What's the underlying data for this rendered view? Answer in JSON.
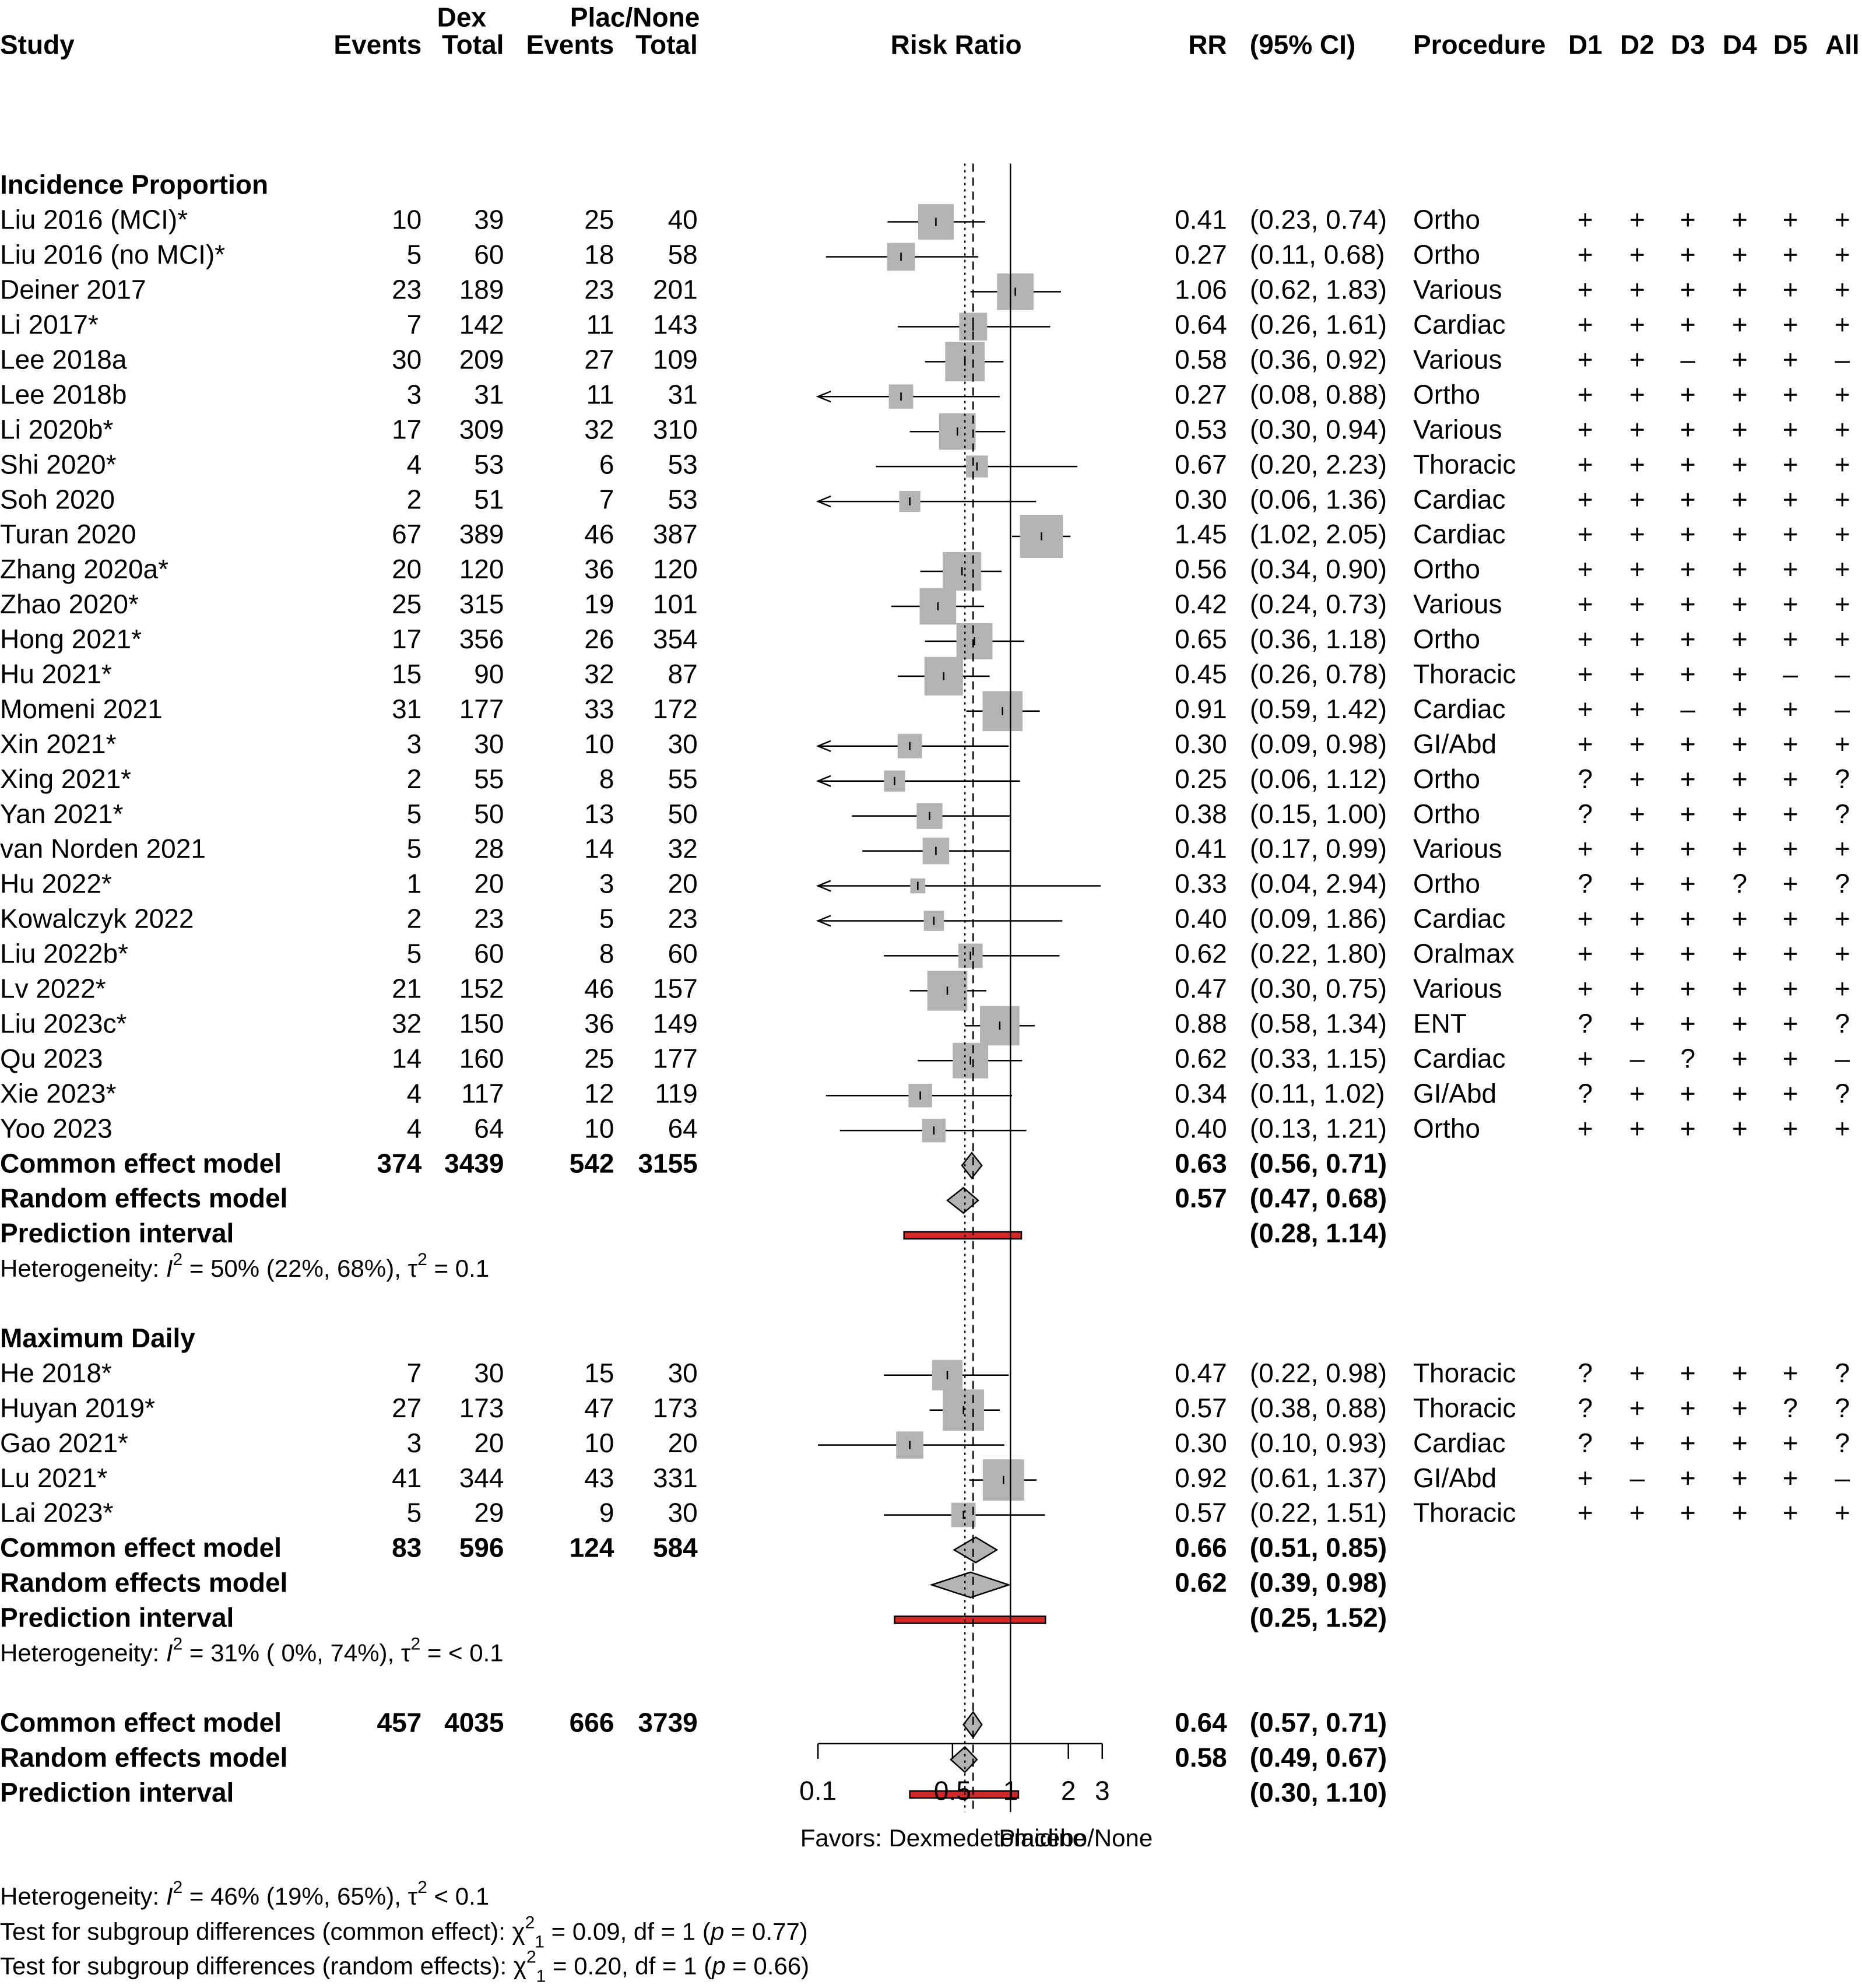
{
  "headers": {
    "group1": "Dex",
    "group2": "Plac/None",
    "study": "Study",
    "events": "Events",
    "total": "Total",
    "effect": "Risk Ratio",
    "rr": "RR",
    "ci": "(95% CI)",
    "procedure": "Procedure",
    "domains": [
      "D1",
      "D2",
      "D3",
      "D4",
      "D5",
      "All"
    ]
  },
  "chart_data": {
    "type": "forest",
    "measure": "Risk Ratio",
    "x_scale": "log",
    "xlim": [
      0.1,
      3
    ],
    "x_ticks": [
      {
        "value": 0.1,
        "label": "0.1"
      },
      {
        "value": 0.5,
        "label": "0.5"
      },
      {
        "value": 1,
        "label": "1"
      },
      {
        "value": 2,
        "label": "2"
      },
      {
        "value": 3,
        "label": "3"
      }
    ],
    "reference_line": 1,
    "common_line": 0.64,
    "random_line": 0.58,
    "xlabel_left": "Favors: Dexmedetomidine",
    "xlabel_right": "Placebo/None",
    "subgroups": [
      {
        "name": "Incidence Proportion",
        "studies": [
          {
            "study": "Liu 2016 (MCI)*",
            "e1": 10,
            "n1": 39,
            "e2": 25,
            "n2": 40,
            "rr": 0.41,
            "lo": 0.23,
            "hi": 0.74,
            "rr_text": "0.41",
            "ci_text": "(0.23, 0.74)",
            "procedure": "Ortho",
            "rob": [
              "+",
              "+",
              "+",
              "+",
              "+",
              "+"
            ],
            "w": 3.4
          },
          {
            "study": "Liu 2016 (no MCI)*",
            "e1": 5,
            "n1": 60,
            "e2": 18,
            "n2": 58,
            "rr": 0.27,
            "lo": 0.11,
            "hi": 0.68,
            "rr_text": "0.27",
            "ci_text": "(0.11, 0.68)",
            "procedure": "Ortho",
            "rob": [
              "+",
              "+",
              "+",
              "+",
              "+",
              "+"
            ],
            "w": 2.1
          },
          {
            "study": "Deiner 2017",
            "e1": 23,
            "n1": 189,
            "e2": 23,
            "n2": 201,
            "rr": 1.06,
            "lo": 0.62,
            "hi": 1.83,
            "rr_text": "1.06",
            "ci_text": "(0.62, 1.83)",
            "procedure": "Various",
            "rob": [
              "+",
              "+",
              "+",
              "+",
              "+",
              "+"
            ],
            "w": 3.6
          },
          {
            "study": "Li 2017*",
            "e1": 7,
            "n1": 142,
            "e2": 11,
            "n2": 143,
            "rr": 0.64,
            "lo": 0.26,
            "hi": 1.61,
            "rr_text": "0.64",
            "ci_text": "(0.26, 1.61)",
            "procedure": "Cardiac",
            "rob": [
              "+",
              "+",
              "+",
              "+",
              "+",
              "+"
            ],
            "w": 2.1
          },
          {
            "study": "Lee 2018a",
            "e1": 30,
            "n1": 209,
            "e2": 27,
            "n2": 109,
            "rr": 0.58,
            "lo": 0.36,
            "hi": 0.92,
            "rr_text": "0.58",
            "ci_text": "(0.36, 0.92)",
            "procedure": "Various",
            "rob": [
              "+",
              "+",
              "–",
              "+",
              "+",
              "–"
            ],
            "w": 4.2
          },
          {
            "study": "Lee 2018b",
            "e1": 3,
            "n1": 31,
            "e2": 11,
            "n2": 31,
            "rr": 0.27,
            "lo": 0.08,
            "hi": 0.88,
            "rr_text": "0.27",
            "ci_text": "(0.08, 0.88)",
            "procedure": "Ortho",
            "rob": [
              "+",
              "+",
              "+",
              "+",
              "+",
              "+"
            ],
            "w": 1.6
          },
          {
            "study": "Li 2020b*",
            "e1": 17,
            "n1": 309,
            "e2": 32,
            "n2": 310,
            "rr": 0.53,
            "lo": 0.3,
            "hi": 0.94,
            "rr_text": "0.53",
            "ci_text": "(0.30, 0.94)",
            "procedure": "Various",
            "rob": [
              "+",
              "+",
              "+",
              "+",
              "+",
              "+"
            ],
            "w": 3.6
          },
          {
            "study": "Shi 2020*",
            "e1": 4,
            "n1": 53,
            "e2": 6,
            "n2": 53,
            "rr": 0.67,
            "lo": 0.2,
            "hi": 2.23,
            "rr_text": "0.67",
            "ci_text": "(0.20, 2.23)",
            "procedure": "Thoracic",
            "rob": [
              "+",
              "+",
              "+",
              "+",
              "+",
              "+"
            ],
            "w": 1.3
          },
          {
            "study": "Soh 2020",
            "e1": 2,
            "n1": 51,
            "e2": 7,
            "n2": 53,
            "rr": 0.3,
            "lo": 0.06,
            "hi": 1.36,
            "rr_text": "0.30",
            "ci_text": "(0.06, 1.36)",
            "procedure": "Cardiac",
            "rob": [
              "+",
              "+",
              "+",
              "+",
              "+",
              "+"
            ],
            "w": 1.2
          },
          {
            "study": "Turan 2020",
            "e1": 67,
            "n1": 389,
            "e2": 46,
            "n2": 387,
            "rr": 1.45,
            "lo": 1.02,
            "hi": 2.05,
            "rr_text": "1.45",
            "ci_text": "(1.02, 2.05)",
            "procedure": "Cardiac",
            "rob": [
              "+",
              "+",
              "+",
              "+",
              "+",
              "+"
            ],
            "w": 5.0
          },
          {
            "study": "Zhang 2020a*",
            "e1": 20,
            "n1": 120,
            "e2": 36,
            "n2": 120,
            "rr": 0.56,
            "lo": 0.34,
            "hi": 0.9,
            "rr_text": "0.56",
            "ci_text": "(0.34, 0.90)",
            "procedure": "Ortho",
            "rob": [
              "+",
              "+",
              "+",
              "+",
              "+",
              "+"
            ],
            "w": 4.0
          },
          {
            "study": "Zhao 2020*",
            "e1": 25,
            "n1": 315,
            "e2": 19,
            "n2": 101,
            "rr": 0.42,
            "lo": 0.24,
            "hi": 0.73,
            "rr_text": "0.42",
            "ci_text": "(0.24, 0.73)",
            "procedure": "Various",
            "rob": [
              "+",
              "+",
              "+",
              "+",
              "+",
              "+"
            ],
            "w": 3.6
          },
          {
            "study": "Hong 2021*",
            "e1": 17,
            "n1": 356,
            "e2": 26,
            "n2": 354,
            "rr": 0.65,
            "lo": 0.36,
            "hi": 1.18,
            "rr_text": "0.65",
            "ci_text": "(0.36, 1.18)",
            "procedure": "Ortho",
            "rob": [
              "+",
              "+",
              "+",
              "+",
              "+",
              "+"
            ],
            "w": 3.5
          },
          {
            "study": "Hu 2021*",
            "e1": 15,
            "n1": 90,
            "e2": 32,
            "n2": 87,
            "rr": 0.45,
            "lo": 0.26,
            "hi": 0.78,
            "rr_text": "0.45",
            "ci_text": "(0.26, 0.78)",
            "procedure": "Thoracic",
            "rob": [
              "+",
              "+",
              "+",
              "+",
              "–",
              "–"
            ],
            "w": 4.0
          },
          {
            "study": "Momeni 2021",
            "e1": 31,
            "n1": 177,
            "e2": 33,
            "n2": 172,
            "rr": 0.91,
            "lo": 0.59,
            "hi": 1.42,
            "rr_text": "0.91",
            "ci_text": "(0.59, 1.42)",
            "procedure": "Cardiac",
            "rob": [
              "+",
              "+",
              "–",
              "+",
              "+",
              "–"
            ],
            "w": 4.3
          },
          {
            "study": "Xin 2021*",
            "e1": 3,
            "n1": 30,
            "e2": 10,
            "n2": 30,
            "rr": 0.3,
            "lo": 0.09,
            "hi": 0.98,
            "rr_text": "0.30",
            "ci_text": "(0.09, 0.98)",
            "procedure": "GI/Abd",
            "rob": [
              "+",
              "+",
              "+",
              "+",
              "+",
              "+"
            ],
            "w": 1.6
          },
          {
            "study": "Xing 2021*",
            "e1": 2,
            "n1": 55,
            "e2": 8,
            "n2": 55,
            "rr": 0.25,
            "lo": 0.06,
            "hi": 1.12,
            "rr_text": "0.25",
            "ci_text": "(0.06, 1.12)",
            "procedure": "Ortho",
            "rob": [
              "?",
              "+",
              "+",
              "+",
              "+",
              "?"
            ],
            "w": 1.2
          },
          {
            "study": "Yan 2021*",
            "e1": 5,
            "n1": 50,
            "e2": 13,
            "n2": 50,
            "rr": 0.38,
            "lo": 0.15,
            "hi": 1.0,
            "rr_text": "0.38",
            "ci_text": "(0.15, 1.00)",
            "procedure": "Ortho",
            "rob": [
              "?",
              "+",
              "+",
              "+",
              "+",
              "?"
            ],
            "w": 1.8
          },
          {
            "study": "van Norden 2021",
            "e1": 5,
            "n1": 28,
            "e2": 14,
            "n2": 32,
            "rr": 0.41,
            "lo": 0.17,
            "hi": 0.99,
            "rr_text": "0.41",
            "ci_text": "(0.17, 0.99)",
            "procedure": "Various",
            "rob": [
              "+",
              "+",
              "+",
              "+",
              "+",
              "+"
            ],
            "w": 1.9
          },
          {
            "study": "Hu 2022*",
            "e1": 1,
            "n1": 20,
            "e2": 3,
            "n2": 20,
            "rr": 0.33,
            "lo": 0.04,
            "hi": 2.94,
            "rr_text": "0.33",
            "ci_text": "(0.04, 2.94)",
            "procedure": "Ortho",
            "rob": [
              "?",
              "+",
              "+",
              "?",
              "+",
              "?"
            ],
            "w": 0.6
          },
          {
            "study": "Kowalczyk 2022",
            "e1": 2,
            "n1": 23,
            "e2": 5,
            "n2": 23,
            "rr": 0.4,
            "lo": 0.09,
            "hi": 1.86,
            "rr_text": "0.40",
            "ci_text": "(0.09, 1.86)",
            "procedure": "Cardiac",
            "rob": [
              "+",
              "+",
              "+",
              "+",
              "+",
              "+"
            ],
            "w": 1.1
          },
          {
            "study": "Liu 2022b*",
            "e1": 5,
            "n1": 60,
            "e2": 8,
            "n2": 60,
            "rr": 0.62,
            "lo": 0.22,
            "hi": 1.8,
            "rr_text": "0.62",
            "ci_text": "(0.22, 1.80)",
            "procedure": "Oralmax",
            "rob": [
              "+",
              "+",
              "+",
              "+",
              "+",
              "+"
            ],
            "w": 1.6
          },
          {
            "study": "Lv 2022*",
            "e1": 21,
            "n1": 152,
            "e2": 46,
            "n2": 157,
            "rr": 0.47,
            "lo": 0.3,
            "hi": 0.75,
            "rr_text": "0.47",
            "ci_text": "(0.30, 0.75)",
            "procedure": "Various",
            "rob": [
              "+",
              "+",
              "+",
              "+",
              "+",
              "+"
            ],
            "w": 4.3
          },
          {
            "study": "Liu 2023c*",
            "e1": 32,
            "n1": 150,
            "e2": 36,
            "n2": 149,
            "rr": 0.88,
            "lo": 0.58,
            "hi": 1.34,
            "rr_text": "0.88",
            "ci_text": "(0.58, 1.34)",
            "procedure": "ENT",
            "rob": [
              "?",
              "+",
              "+",
              "+",
              "+",
              "?"
            ],
            "w": 4.2
          },
          {
            "study": "Qu 2023",
            "e1": 14,
            "n1": 160,
            "e2": 25,
            "n2": 177,
            "rr": 0.62,
            "lo": 0.33,
            "hi": 1.15,
            "rr_text": "0.62",
            "ci_text": "(0.33, 1.15)",
            "procedure": "Cardiac",
            "rob": [
              "+",
              "–",
              "?",
              "+",
              "+",
              "–"
            ],
            "w": 3.4
          },
          {
            "study": "Xie 2023*",
            "e1": 4,
            "n1": 117,
            "e2": 12,
            "n2": 119,
            "rr": 0.34,
            "lo": 0.11,
            "hi": 1.02,
            "rr_text": "0.34",
            "ci_text": "(0.11, 1.02)",
            "procedure": "GI/Abd",
            "rob": [
              "?",
              "+",
              "+",
              "+",
              "+",
              "?"
            ],
            "w": 1.5
          },
          {
            "study": "Yoo 2023",
            "e1": 4,
            "n1": 64,
            "e2": 10,
            "n2": 64,
            "rr": 0.4,
            "lo": 0.13,
            "hi": 1.21,
            "rr_text": "0.40",
            "ci_text": "(0.13, 1.21)",
            "procedure": "Ortho",
            "rob": [
              "+",
              "+",
              "+",
              "+",
              "+",
              "+"
            ],
            "w": 1.5
          }
        ],
        "common": {
          "label": "Common effect model",
          "e1": 374,
          "n1": 3439,
          "e2": 542,
          "n2": 3155,
          "rr": 0.63,
          "lo": 0.56,
          "hi": 0.71,
          "rr_text": "0.63",
          "ci_text": "(0.56, 0.71)"
        },
        "random": {
          "label": "Random effects model",
          "rr": 0.57,
          "lo": 0.47,
          "hi": 0.68,
          "rr_text": "0.57",
          "ci_text": "(0.47, 0.68)"
        },
        "prediction": {
          "label": "Prediction interval",
          "lo": 0.28,
          "hi": 1.14,
          "ci_text": "(0.28, 1.14)"
        },
        "heterogeneity": {
          "prefix": "Heterogeneity: ",
          "i2": "I",
          "rest": " = 50% (22%, 68%), τ",
          "tau": " = 0.1"
        }
      },
      {
        "name": "Maximum Daily",
        "studies": [
          {
            "study": "He 2018*",
            "e1": 7,
            "n1": 30,
            "e2": 15,
            "n2": 30,
            "rr": 0.47,
            "lo": 0.22,
            "hi": 0.98,
            "rr_text": "0.47",
            "ci_text": "(0.22, 0.98)",
            "procedure": "Thoracic",
            "rob": [
              "?",
              "+",
              "+",
              "+",
              "+",
              "?"
            ],
            "w": 2.5
          },
          {
            "study": "Huyan 2019*",
            "e1": 27,
            "n1": 173,
            "e2": 47,
            "n2": 173,
            "rr": 0.57,
            "lo": 0.38,
            "hi": 0.88,
            "rr_text": "0.57",
            "ci_text": "(0.38, 0.88)",
            "procedure": "Thoracic",
            "rob": [
              "?",
              "+",
              "+",
              "+",
              "?",
              "?"
            ],
            "w": 4.6
          },
          {
            "study": "Gao 2021*",
            "e1": 3,
            "n1": 20,
            "e2": 10,
            "n2": 20,
            "rr": 0.3,
            "lo": 0.1,
            "hi": 0.93,
            "rr_text": "0.30",
            "ci_text": "(0.10, 0.93)",
            "procedure": "Cardiac",
            "rob": [
              "?",
              "+",
              "+",
              "+",
              "+",
              "?"
            ],
            "w": 2.0
          },
          {
            "study": "Lu 2021*",
            "e1": 41,
            "n1": 344,
            "e2": 43,
            "n2": 331,
            "rr": 0.92,
            "lo": 0.61,
            "hi": 1.37,
            "rr_text": "0.92",
            "ci_text": "(0.61, 1.37)",
            "procedure": "GI/Abd",
            "rob": [
              "+",
              "–",
              "+",
              "+",
              "+",
              "–"
            ],
            "w": 4.6
          },
          {
            "study": "Lai 2023*",
            "e1": 5,
            "n1": 29,
            "e2": 9,
            "n2": 30,
            "rr": 0.57,
            "lo": 0.22,
            "hi": 1.51,
            "rr_text": "0.57",
            "ci_text": "(0.22, 1.51)",
            "procedure": "Thoracic",
            "rob": [
              "+",
              "+",
              "+",
              "+",
              "+",
              "+"
            ],
            "w": 1.6
          }
        ],
        "common": {
          "label": "Common effect model",
          "e1": 83,
          "n1": 596,
          "e2": 124,
          "n2": 584,
          "rr": 0.66,
          "lo": 0.51,
          "hi": 0.85,
          "rr_text": "0.66",
          "ci_text": "(0.51, 0.85)"
        },
        "random": {
          "label": "Random effects model",
          "rr": 0.62,
          "lo": 0.39,
          "hi": 0.98,
          "rr_text": "0.62",
          "ci_text": "(0.39, 0.98)"
        },
        "prediction": {
          "label": "Prediction interval",
          "lo": 0.25,
          "hi": 1.52,
          "ci_text": "(0.25, 1.52)"
        },
        "heterogeneity": {
          "prefix": "Heterogeneity: ",
          "i2": "I",
          "rest": " = 31% ( 0%, 74%), τ",
          "tau": " = < 0.1"
        }
      }
    ],
    "overall": {
      "common": {
        "label": "Common effect model",
        "e1": 457,
        "n1": 4035,
        "e2": 666,
        "n2": 3739,
        "rr": 0.64,
        "lo": 0.57,
        "hi": 0.71,
        "rr_text": "0.64",
        "ci_text": "(0.57, 0.71)"
      },
      "random": {
        "label": "Random effects model",
        "rr": 0.58,
        "lo": 0.49,
        "hi": 0.67,
        "rr_text": "0.58",
        "ci_text": "(0.49, 0.67)"
      },
      "prediction": {
        "label": "Prediction interval",
        "lo": 0.3,
        "hi": 1.1,
        "ci_text": "(0.30, 1.10)"
      }
    },
    "footer": {
      "heterogeneity": {
        "prefix": "Heterogeneity: ",
        "i2": "I",
        "rest": " = 46% (19%, 65%), τ",
        "tau": " < 0.1"
      },
      "common_test": {
        "prefix": "Test for subgroup differences (common effect): ",
        "stat": " = 0.09, df = 1 (",
        "p": "p",
        "pval": " = 0.77)"
      },
      "random_test": {
        "prefix": "Test for subgroup differences (random effects): ",
        "stat": " = 0.20, df = 1 (",
        "p": "p",
        "pval": " = 0.66)"
      }
    },
    "colors": {
      "square": "#b3b3b3",
      "diamond": "#b3b3b3",
      "prediction": "#d62728",
      "subgroup_text": "#9a9a9a"
    }
  }
}
